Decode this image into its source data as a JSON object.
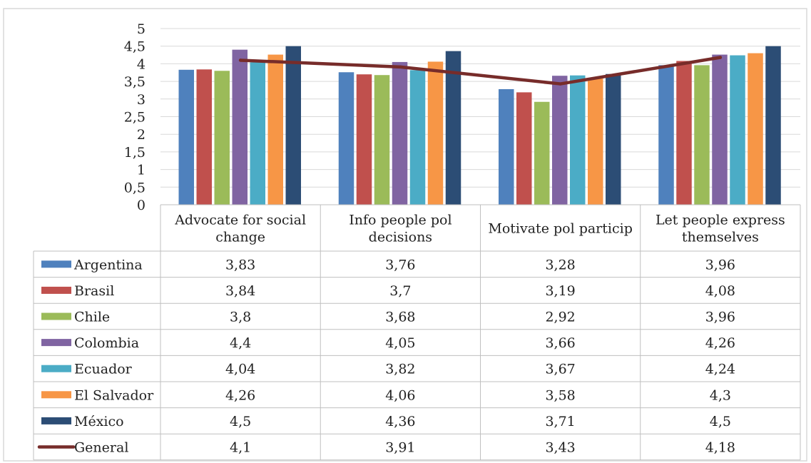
{
  "chart_data": {
    "type": "bar",
    "title": "",
    "xlabel": "",
    "ylabel": "",
    "ylim": [
      0,
      5
    ],
    "yticks": [
      "0",
      "0,5",
      "1",
      "1,5",
      "2",
      "2,5",
      "3",
      "3,5",
      "4",
      "4,5",
      "5"
    ],
    "categories": [
      [
        "Advocate for social",
        "change"
      ],
      [
        "Info people pol",
        "decisions"
      ],
      [
        "Motivate pol particip"
      ],
      [
        "Let people express",
        "themselves"
      ]
    ],
    "grid": true,
    "legend": "data-table",
    "series": [
      {
        "name": "Argentina",
        "kind": "bar",
        "color": "#4F81BD",
        "values": [
          3.83,
          3.76,
          3.28,
          3.96
        ],
        "labels": [
          "3,83",
          "3,76",
          "3,28",
          "3,96"
        ]
      },
      {
        "name": "Brasil",
        "kind": "bar",
        "color": "#C0504D",
        "values": [
          3.84,
          3.7,
          3.19,
          4.08
        ],
        "labels": [
          "3,84",
          "3,7",
          "3,19",
          "4,08"
        ]
      },
      {
        "name": "Chile",
        "kind": "bar",
        "color": "#9BBB59",
        "values": [
          3.8,
          3.68,
          2.92,
          3.96
        ],
        "labels": [
          "3,8",
          "3,68",
          "2,92",
          "3,96"
        ]
      },
      {
        "name": "Colombia",
        "kind": "bar",
        "color": "#8064A2",
        "values": [
          4.4,
          4.05,
          3.66,
          4.26
        ],
        "labels": [
          "4,4",
          "4,05",
          "3,66",
          "4,26"
        ]
      },
      {
        "name": "Ecuador",
        "kind": "bar",
        "color": "#4BACC6",
        "values": [
          4.04,
          3.82,
          3.67,
          4.24
        ],
        "labels": [
          "4,04",
          "3,82",
          "3,67",
          "4,24"
        ]
      },
      {
        "name": "El Salvador",
        "kind": "bar",
        "color": "#F79646",
        "values": [
          4.26,
          4.06,
          3.58,
          4.3
        ],
        "labels": [
          "4,26",
          "4,06",
          "3,58",
          "4,3"
        ]
      },
      {
        "name": "México",
        "kind": "bar",
        "color": "#2C4D75",
        "values": [
          4.5,
          4.36,
          3.71,
          4.5
        ],
        "labels": [
          "4,5",
          "4,36",
          "3,71",
          "4,5"
        ]
      },
      {
        "name": "General",
        "kind": "line",
        "color": "#772C2A",
        "values": [
          4.1,
          3.91,
          3.43,
          4.18
        ],
        "labels": [
          "4,1",
          "3,91",
          "3,43",
          "4,18"
        ]
      }
    ]
  }
}
